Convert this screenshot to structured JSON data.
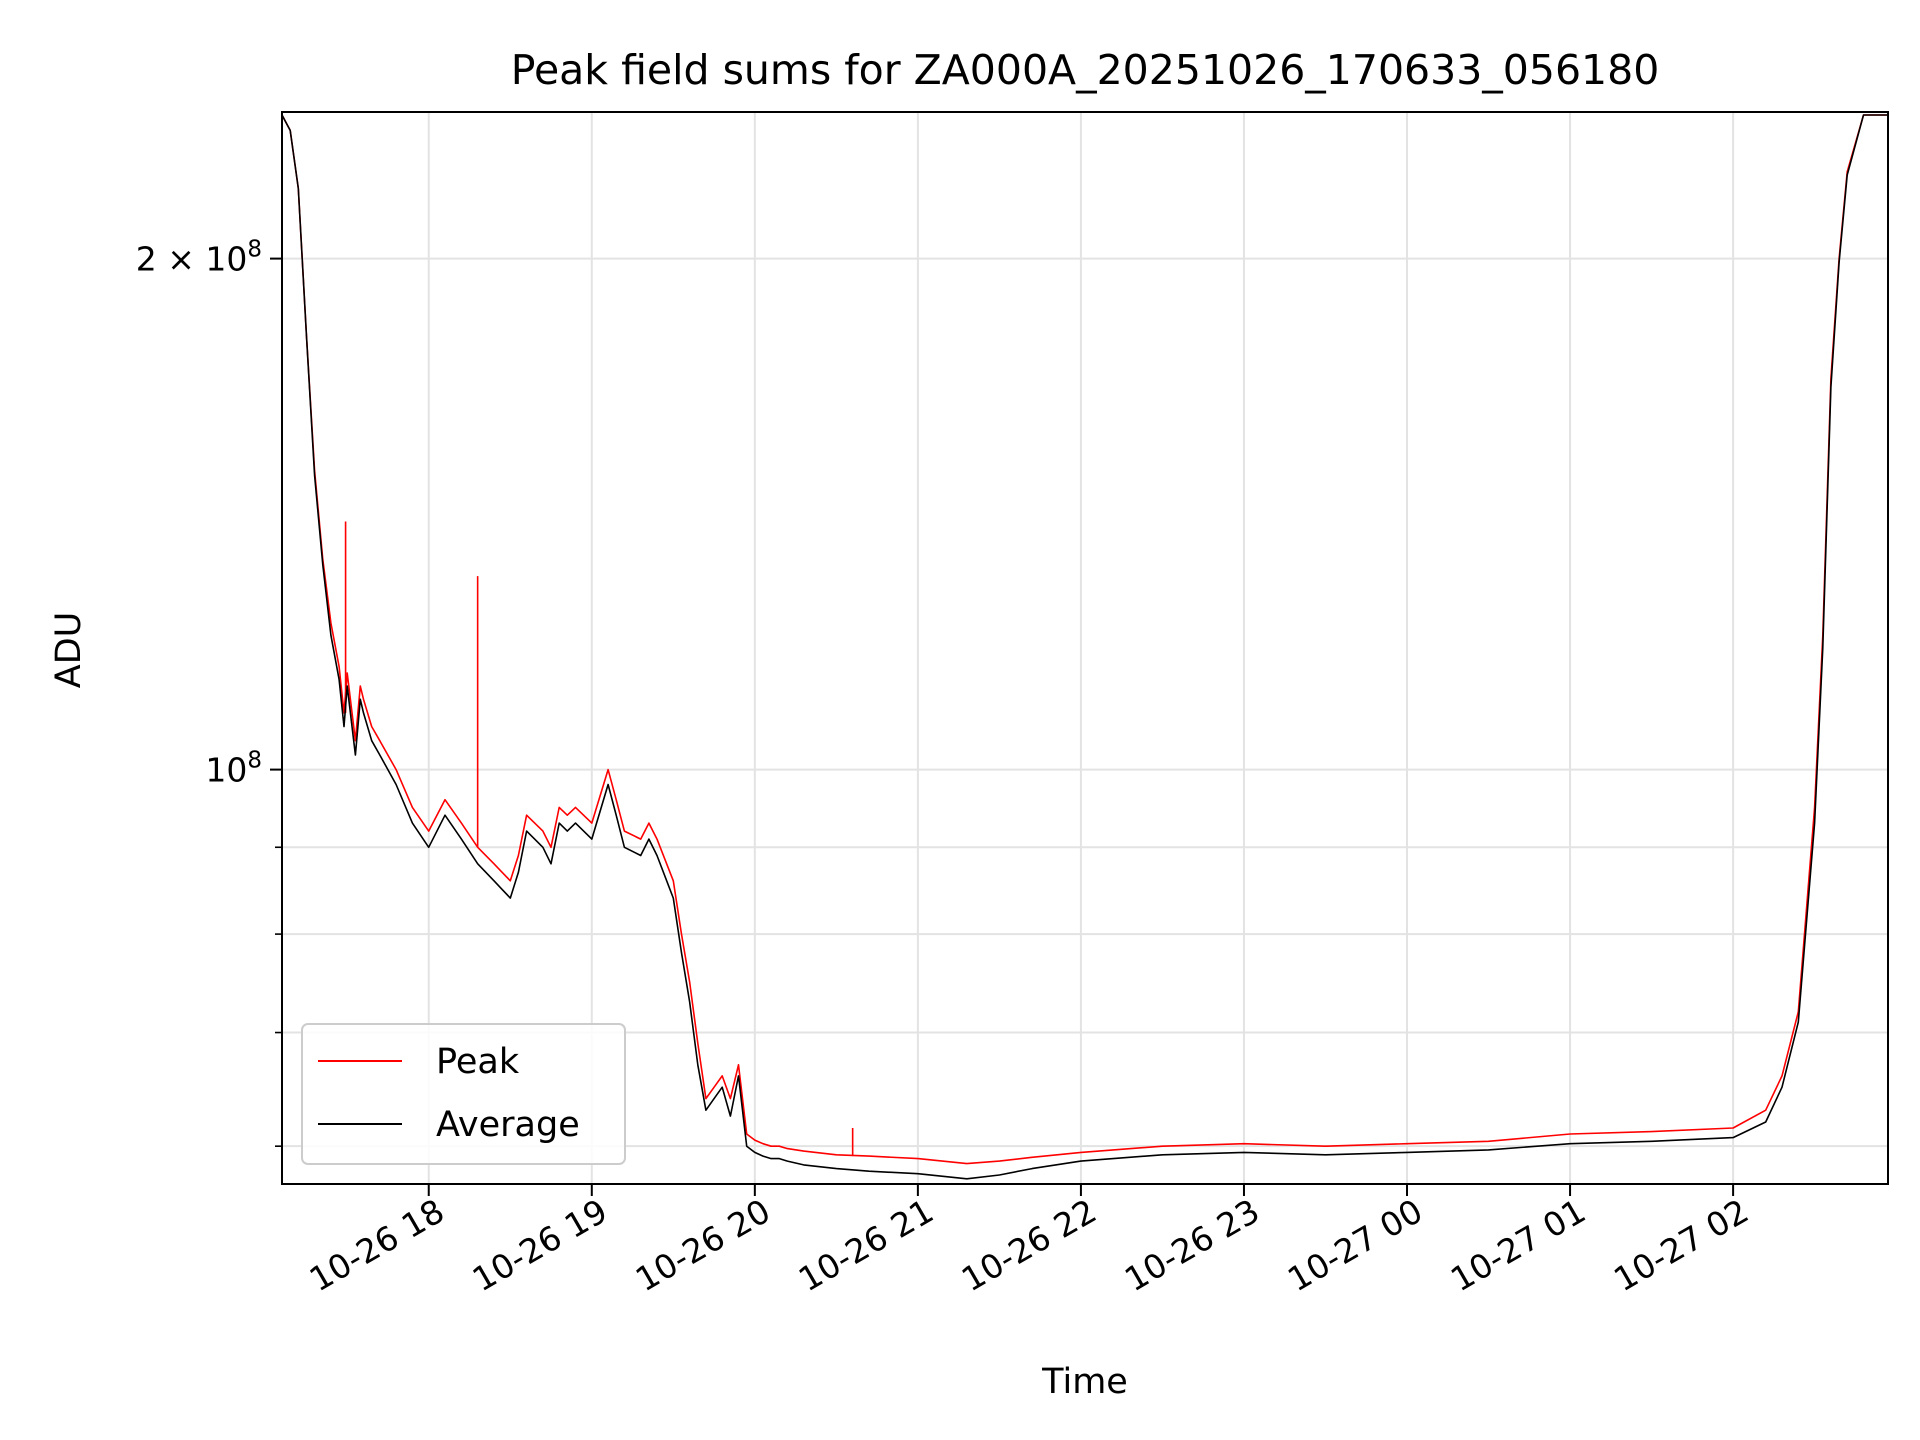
{
  "chart_data": {
    "type": "line",
    "title": "Peak field sums for ZA000A_20251026_170633_056180",
    "xlabel": "Time",
    "ylabel": "ADU",
    "yscale": "log",
    "grid": true,
    "legend_position": "lower-left",
    "xlim": [
      17.1,
      26.95
    ],
    "ylim": [
      57000000,
      244000000
    ],
    "x_ticks": [
      {
        "value": 18,
        "label": "10-26 18"
      },
      {
        "value": 19,
        "label": "10-26 19"
      },
      {
        "value": 20,
        "label": "10-26 20"
      },
      {
        "value": 21,
        "label": "10-26 21"
      },
      {
        "value": 22,
        "label": "10-26 22"
      },
      {
        "value": 23,
        "label": "10-26 23"
      },
      {
        "value": 24,
        "label": "10-27 00"
      },
      {
        "value": 25,
        "label": "10-27 01"
      },
      {
        "value": 26,
        "label": "10-27 02"
      }
    ],
    "y_major_ticks": [
      {
        "value": 100000000,
        "base": "10",
        "exp": "8"
      },
      {
        "value": 200000000,
        "base": "2 × 10",
        "exp": "8"
      }
    ],
    "y_minor_ticks": [
      60000000,
      70000000,
      80000000,
      90000000
    ],
    "series": [
      {
        "name": "Peak",
        "color": "#ff0000",
        "x": [
          17.1,
          17.15,
          17.2,
          17.25,
          17.3,
          17.35,
          17.4,
          17.45,
          17.48,
          17.5,
          17.55,
          17.58,
          17.6,
          17.65,
          17.7,
          17.8,
          17.9,
          18.0,
          18.1,
          18.2,
          18.3,
          18.4,
          18.45,
          18.5,
          18.55,
          18.6,
          18.7,
          18.75,
          18.8,
          18.85,
          18.9,
          19.0,
          19.1,
          19.15,
          19.2,
          19.3,
          19.35,
          19.4,
          19.5,
          19.55,
          19.6,
          19.65,
          19.7,
          19.75,
          19.8,
          19.85,
          19.9,
          19.95,
          20.0,
          20.05,
          20.1,
          20.15,
          20.2,
          20.3,
          20.5,
          20.7,
          21.0,
          21.3,
          21.5,
          21.7,
          22.0,
          22.5,
          23.0,
          23.5,
          24.0,
          24.5,
          25.0,
          25.5,
          26.0,
          26.2,
          26.3,
          26.4,
          26.5,
          26.55,
          26.6,
          26.65,
          26.7,
          26.8,
          26.95
        ],
        "y": [
          243000000,
          238000000,
          220000000,
          180000000,
          150000000,
          133000000,
          122000000,
          115000000,
          108000000,
          114000000,
          104000000,
          112000000,
          110000000,
          106000000,
          104000000,
          100000000,
          95000000,
          92000000,
          96000000,
          93000000,
          90000000,
          88000000,
          87000000,
          86000000,
          89000000,
          94000000,
          92000000,
          90000000,
          95000000,
          94000000,
          95000000,
          93000000,
          100000000,
          96000000,
          92000000,
          91000000,
          93000000,
          91000000,
          86000000,
          80000000,
          75000000,
          69000000,
          64000000,
          65000000,
          66000000,
          64000000,
          67000000,
          61000000,
          60500000,
          60200000,
          60000000,
          60000000,
          59800000,
          59600000,
          59300000,
          59200000,
          59000000,
          58600000,
          58800000,
          59100000,
          59500000,
          60000000,
          60200000,
          60000000,
          60200000,
          60400000,
          61000000,
          61200000,
          61500000,
          63000000,
          66000000,
          72000000,
          95000000,
          120000000,
          170000000,
          200000000,
          225000000,
          243000000,
          243000000
        ],
        "spikes": [
          {
            "x": 17.49,
            "y": 140000000
          },
          {
            "x": 18.3,
            "y": 130000000
          },
          {
            "x": 20.6,
            "y": 61500000
          }
        ]
      },
      {
        "name": "Average",
        "color": "#000000",
        "x": [
          17.1,
          17.15,
          17.2,
          17.25,
          17.3,
          17.35,
          17.4,
          17.45,
          17.48,
          17.5,
          17.55,
          17.58,
          17.6,
          17.65,
          17.7,
          17.8,
          17.9,
          18.0,
          18.1,
          18.2,
          18.3,
          18.4,
          18.45,
          18.5,
          18.55,
          18.6,
          18.7,
          18.75,
          18.8,
          18.85,
          18.9,
          19.0,
          19.1,
          19.15,
          19.2,
          19.3,
          19.35,
          19.4,
          19.5,
          19.55,
          19.6,
          19.65,
          19.7,
          19.75,
          19.8,
          19.85,
          19.9,
          19.95,
          20.0,
          20.05,
          20.1,
          20.15,
          20.2,
          20.3,
          20.5,
          20.7,
          21.0,
          21.3,
          21.5,
          21.7,
          22.0,
          22.5,
          23.0,
          23.5,
          24.0,
          24.5,
          25.0,
          25.5,
          26.0,
          26.2,
          26.3,
          26.4,
          26.5,
          26.55,
          26.6,
          26.65,
          26.7,
          26.8,
          26.95
        ],
        "y": [
          243000000,
          238000000,
          220000000,
          180000000,
          149000000,
          132000000,
          120000000,
          113000000,
          106000000,
          112000000,
          102000000,
          110000000,
          108000000,
          104000000,
          102000000,
          98000000,
          93000000,
          90000000,
          94000000,
          91000000,
          88000000,
          86000000,
          85000000,
          84000000,
          87000000,
          92000000,
          90000000,
          88000000,
          93000000,
          92000000,
          93000000,
          91000000,
          98000000,
          94000000,
          90000000,
          89000000,
          91000000,
          89000000,
          84000000,
          78000000,
          73000000,
          67000000,
          63000000,
          64000000,
          65000000,
          62500000,
          66000000,
          60000000,
          59500000,
          59200000,
          59000000,
          59000000,
          58800000,
          58500000,
          58200000,
          58000000,
          57800000,
          57400000,
          57700000,
          58200000,
          58800000,
          59300000,
          59500000,
          59300000,
          59500000,
          59700000,
          60200000,
          60400000,
          60700000,
          62000000,
          65000000,
          71000000,
          93000000,
          118000000,
          168000000,
          199000000,
          224000000,
          243000000,
          243000000
        ],
        "spikes": []
      }
    ]
  }
}
